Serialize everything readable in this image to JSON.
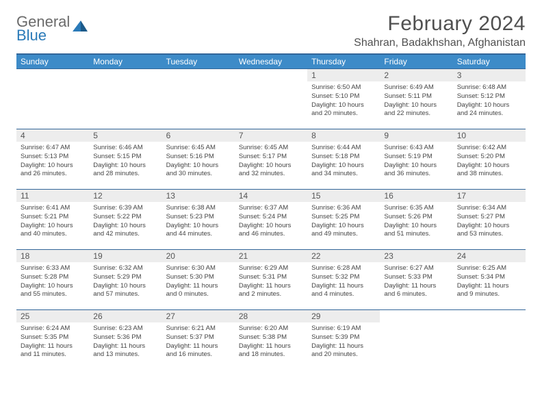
{
  "logo": {
    "line1": "General",
    "line2": "Blue"
  },
  "title": "February 2024",
  "location": "Shahran, Badakhshan, Afghanistan",
  "weekdays": [
    "Sunday",
    "Monday",
    "Tuesday",
    "Wednesday",
    "Thursday",
    "Friday",
    "Saturday"
  ],
  "colors": {
    "header_bg": "#3d8bc8",
    "border": "#336699",
    "daynum_bg": "#ededed",
    "text": "#505050"
  },
  "days": {
    "d1": {
      "num": "1",
      "sunrise": "Sunrise: 6:50 AM",
      "sunset": "Sunset: 5:10 PM",
      "daylight": "Daylight: 10 hours and 20 minutes."
    },
    "d2": {
      "num": "2",
      "sunrise": "Sunrise: 6:49 AM",
      "sunset": "Sunset: 5:11 PM",
      "daylight": "Daylight: 10 hours and 22 minutes."
    },
    "d3": {
      "num": "3",
      "sunrise": "Sunrise: 6:48 AM",
      "sunset": "Sunset: 5:12 PM",
      "daylight": "Daylight: 10 hours and 24 minutes."
    },
    "d4": {
      "num": "4",
      "sunrise": "Sunrise: 6:47 AM",
      "sunset": "Sunset: 5:13 PM",
      "daylight": "Daylight: 10 hours and 26 minutes."
    },
    "d5": {
      "num": "5",
      "sunrise": "Sunrise: 6:46 AM",
      "sunset": "Sunset: 5:15 PM",
      "daylight": "Daylight: 10 hours and 28 minutes."
    },
    "d6": {
      "num": "6",
      "sunrise": "Sunrise: 6:45 AM",
      "sunset": "Sunset: 5:16 PM",
      "daylight": "Daylight: 10 hours and 30 minutes."
    },
    "d7": {
      "num": "7",
      "sunrise": "Sunrise: 6:45 AM",
      "sunset": "Sunset: 5:17 PM",
      "daylight": "Daylight: 10 hours and 32 minutes."
    },
    "d8": {
      "num": "8",
      "sunrise": "Sunrise: 6:44 AM",
      "sunset": "Sunset: 5:18 PM",
      "daylight": "Daylight: 10 hours and 34 minutes."
    },
    "d9": {
      "num": "9",
      "sunrise": "Sunrise: 6:43 AM",
      "sunset": "Sunset: 5:19 PM",
      "daylight": "Daylight: 10 hours and 36 minutes."
    },
    "d10": {
      "num": "10",
      "sunrise": "Sunrise: 6:42 AM",
      "sunset": "Sunset: 5:20 PM",
      "daylight": "Daylight: 10 hours and 38 minutes."
    },
    "d11": {
      "num": "11",
      "sunrise": "Sunrise: 6:41 AM",
      "sunset": "Sunset: 5:21 PM",
      "daylight": "Daylight: 10 hours and 40 minutes."
    },
    "d12": {
      "num": "12",
      "sunrise": "Sunrise: 6:39 AM",
      "sunset": "Sunset: 5:22 PM",
      "daylight": "Daylight: 10 hours and 42 minutes."
    },
    "d13": {
      "num": "13",
      "sunrise": "Sunrise: 6:38 AM",
      "sunset": "Sunset: 5:23 PM",
      "daylight": "Daylight: 10 hours and 44 minutes."
    },
    "d14": {
      "num": "14",
      "sunrise": "Sunrise: 6:37 AM",
      "sunset": "Sunset: 5:24 PM",
      "daylight": "Daylight: 10 hours and 46 minutes."
    },
    "d15": {
      "num": "15",
      "sunrise": "Sunrise: 6:36 AM",
      "sunset": "Sunset: 5:25 PM",
      "daylight": "Daylight: 10 hours and 49 minutes."
    },
    "d16": {
      "num": "16",
      "sunrise": "Sunrise: 6:35 AM",
      "sunset": "Sunset: 5:26 PM",
      "daylight": "Daylight: 10 hours and 51 minutes."
    },
    "d17": {
      "num": "17",
      "sunrise": "Sunrise: 6:34 AM",
      "sunset": "Sunset: 5:27 PM",
      "daylight": "Daylight: 10 hours and 53 minutes."
    },
    "d18": {
      "num": "18",
      "sunrise": "Sunrise: 6:33 AM",
      "sunset": "Sunset: 5:28 PM",
      "daylight": "Daylight: 10 hours and 55 minutes."
    },
    "d19": {
      "num": "19",
      "sunrise": "Sunrise: 6:32 AM",
      "sunset": "Sunset: 5:29 PM",
      "daylight": "Daylight: 10 hours and 57 minutes."
    },
    "d20": {
      "num": "20",
      "sunrise": "Sunrise: 6:30 AM",
      "sunset": "Sunset: 5:30 PM",
      "daylight": "Daylight: 11 hours and 0 minutes."
    },
    "d21": {
      "num": "21",
      "sunrise": "Sunrise: 6:29 AM",
      "sunset": "Sunset: 5:31 PM",
      "daylight": "Daylight: 11 hours and 2 minutes."
    },
    "d22": {
      "num": "22",
      "sunrise": "Sunrise: 6:28 AM",
      "sunset": "Sunset: 5:32 PM",
      "daylight": "Daylight: 11 hours and 4 minutes."
    },
    "d23": {
      "num": "23",
      "sunrise": "Sunrise: 6:27 AM",
      "sunset": "Sunset: 5:33 PM",
      "daylight": "Daylight: 11 hours and 6 minutes."
    },
    "d24": {
      "num": "24",
      "sunrise": "Sunrise: 6:25 AM",
      "sunset": "Sunset: 5:34 PM",
      "daylight": "Daylight: 11 hours and 9 minutes."
    },
    "d25": {
      "num": "25",
      "sunrise": "Sunrise: 6:24 AM",
      "sunset": "Sunset: 5:35 PM",
      "daylight": "Daylight: 11 hours and 11 minutes."
    },
    "d26": {
      "num": "26",
      "sunrise": "Sunrise: 6:23 AM",
      "sunset": "Sunset: 5:36 PM",
      "daylight": "Daylight: 11 hours and 13 minutes."
    },
    "d27": {
      "num": "27",
      "sunrise": "Sunrise: 6:21 AM",
      "sunset": "Sunset: 5:37 PM",
      "daylight": "Daylight: 11 hours and 16 minutes."
    },
    "d28": {
      "num": "28",
      "sunrise": "Sunrise: 6:20 AM",
      "sunset": "Sunset: 5:38 PM",
      "daylight": "Daylight: 11 hours and 18 minutes."
    },
    "d29": {
      "num": "29",
      "sunrise": "Sunrise: 6:19 AM",
      "sunset": "Sunset: 5:39 PM",
      "daylight": "Daylight: 11 hours and 20 minutes."
    }
  }
}
